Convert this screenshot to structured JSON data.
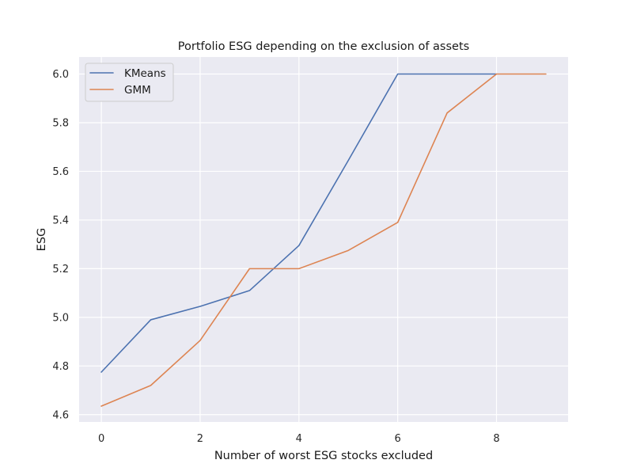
{
  "chart_data": {
    "type": "line",
    "title": "Portfolio ESG depending on the exclusion of assets",
    "xlabel": "Number of worst ESG stocks excluded",
    "ylabel": "ESG",
    "xlim": [
      -0.45,
      9.45
    ],
    "ylim": [
      4.57,
      6.07
    ],
    "xticks": [
      0,
      2,
      4,
      6,
      8
    ],
    "yticks": [
      4.6,
      4.8,
      5.0,
      5.2,
      5.4,
      5.6,
      5.8,
      6.0
    ],
    "grid": true,
    "legend": "top-left",
    "series": [
      {
        "name": "KMeans",
        "color": "#4c72b0",
        "x": [
          0,
          1,
          2,
          3,
          4,
          5,
          6,
          7,
          8
        ],
        "values": [
          4.775,
          4.99,
          5.045,
          5.11,
          5.295,
          5.645,
          6.0,
          6.0,
          6.0
        ]
      },
      {
        "name": "GMM",
        "color": "#dd8452",
        "x": [
          0,
          1,
          2,
          3,
          4,
          5,
          6,
          7,
          8,
          9
        ],
        "values": [
          4.635,
          4.72,
          4.905,
          5.2,
          5.2,
          5.275,
          5.39,
          5.84,
          6.0,
          6.0
        ]
      }
    ]
  }
}
